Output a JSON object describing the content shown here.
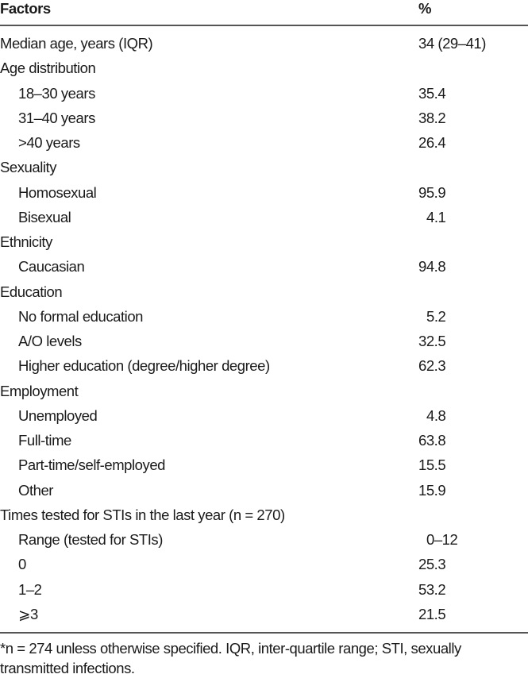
{
  "header": {
    "factors": "Factors",
    "percent": "%"
  },
  "rows": [
    {
      "label": "Median age, years (IQR)",
      "value": "34 (29–41)",
      "indent": false
    },
    {
      "label": "Age distribution",
      "value": "",
      "indent": false
    },
    {
      "label": "18–30 years",
      "value": "35.4",
      "indent": true
    },
    {
      "label": "31–40 years",
      "value": "38.2",
      "indent": true
    },
    {
      "label": ">40 years",
      "value": "26.4",
      "indent": true
    },
    {
      "label": "Sexuality",
      "value": "",
      "indent": false
    },
    {
      "label": "Homosexual",
      "value": "95.9",
      "indent": true
    },
    {
      "label": "Bisexual",
      "value": "4.1",
      "indent": true
    },
    {
      "label": "Ethnicity",
      "value": "",
      "indent": false
    },
    {
      "label": "Caucasian",
      "value": "94.8",
      "indent": true
    },
    {
      "label": "Education",
      "value": "",
      "indent": false
    },
    {
      "label": "No formal education",
      "value": "5.2",
      "indent": true
    },
    {
      "label": "A/O levels",
      "value": "32.5",
      "indent": true
    },
    {
      "label": "Higher education (degree/higher degree)",
      "value": "62.3",
      "indent": true
    },
    {
      "label": "Employment",
      "value": "",
      "indent": false
    },
    {
      "label": "Unemployed",
      "value": "4.8",
      "indent": true
    },
    {
      "label": "Full-time",
      "value": "63.8",
      "indent": true
    },
    {
      "label": "Part-time/self-employed",
      "value": "15.5",
      "indent": true
    },
    {
      "label": "Other",
      "value": "15.9",
      "indent": true
    },
    {
      "label": "Times tested for STIs in the last year (n = 270)",
      "value": "",
      "indent": false
    },
    {
      "label": "Range (tested for STIs)",
      "value": "0–12",
      "indent": true
    },
    {
      "label": "0",
      "value": "25.3",
      "indent": true
    },
    {
      "label": "1–2",
      "value": "53.2",
      "indent": true
    },
    {
      "label": "⩾3",
      "value": "21.5",
      "indent": true
    }
  ],
  "footnote": "*n = 274 unless otherwise specified. IQR, inter-quartile range; STI, sexually transmitted infections."
}
